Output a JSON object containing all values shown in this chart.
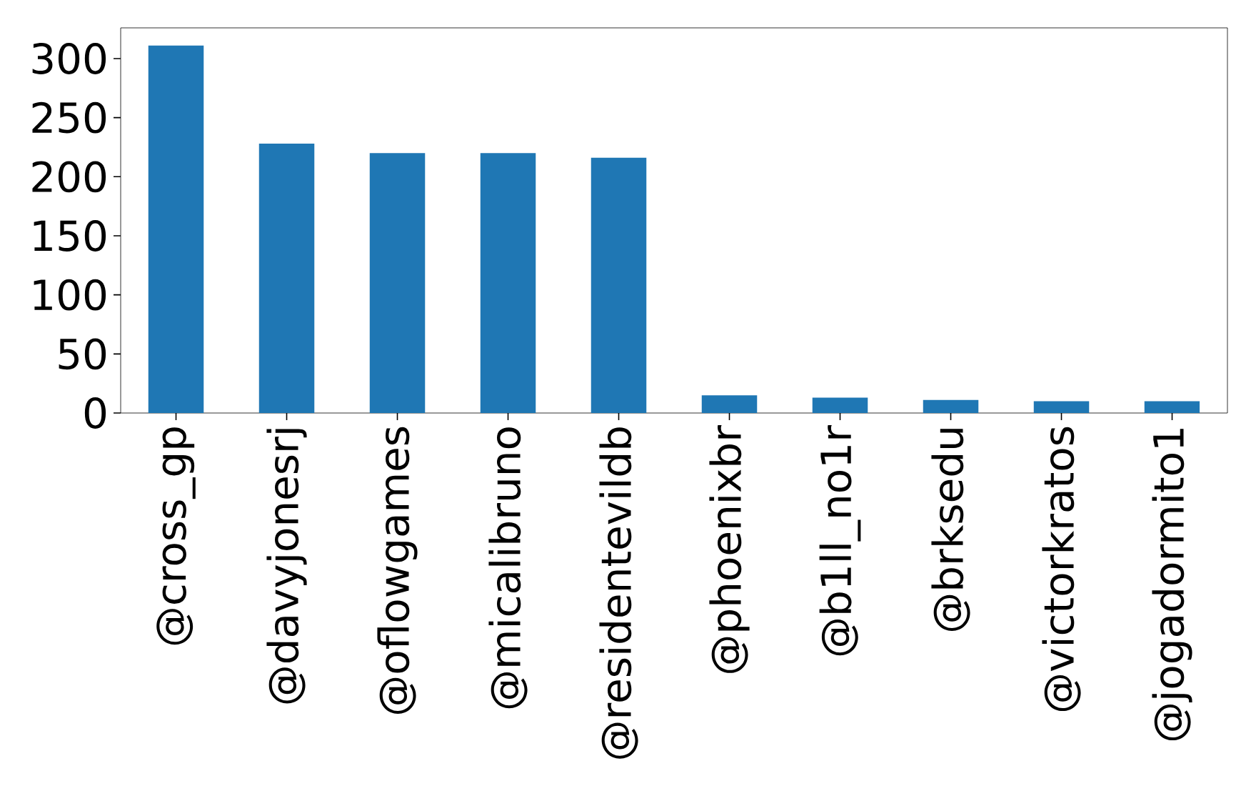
{
  "chart_data": {
    "type": "bar",
    "categories": [
      "@cross_gp",
      "@davyjonesrj",
      "@oflowgames",
      "@micalibruno",
      "@residentevildb",
      "@phoenixbr",
      "@b1ll_no1r",
      "@brksedu",
      "@victorkratos",
      "@jogadormito1"
    ],
    "values": [
      311,
      228,
      220,
      220,
      216,
      15,
      13,
      11,
      10,
      10
    ],
    "color": "#1f77b4",
    "ylim": [
      0,
      326
    ],
    "yticks": [
      0,
      50,
      100,
      150,
      200,
      250,
      300
    ]
  }
}
